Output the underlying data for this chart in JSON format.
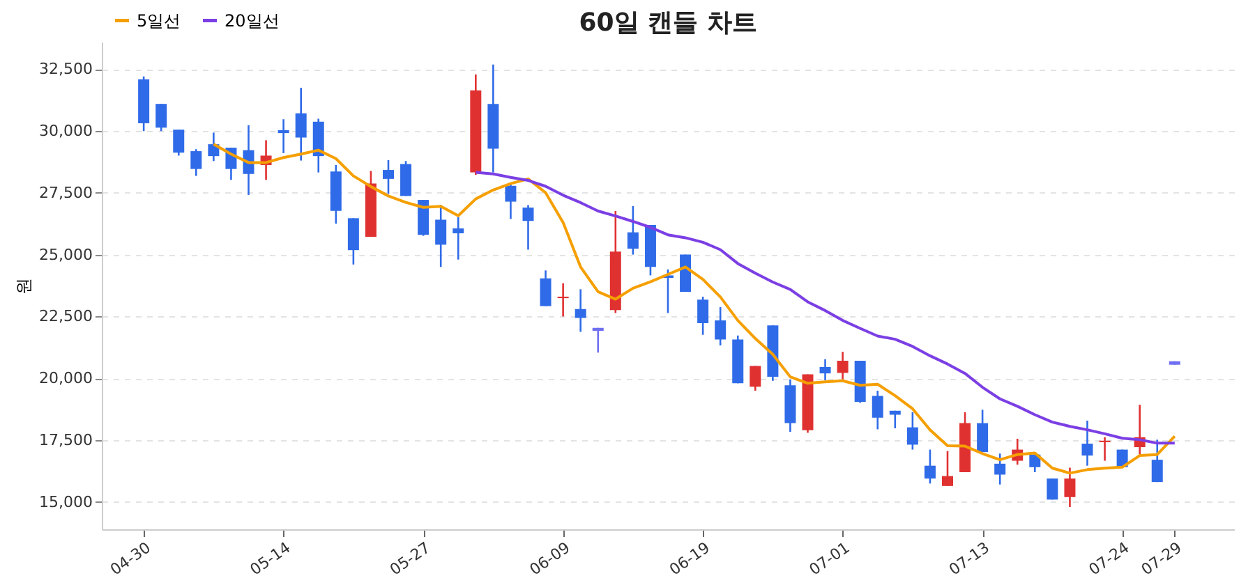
{
  "chart_data": {
    "type": "candlestick",
    "title": "60일 캔들 차트",
    "ylabel": "원",
    "categories": [
      "04-30",
      null,
      null,
      null,
      null,
      null,
      null,
      null,
      "05-14",
      null,
      null,
      null,
      null,
      null,
      null,
      null,
      "05-27",
      null,
      null,
      null,
      null,
      null,
      null,
      null,
      "06-09",
      null,
      null,
      null,
      null,
      null,
      null,
      null,
      "06-19",
      null,
      null,
      null,
      null,
      null,
      null,
      null,
      "07-01",
      null,
      null,
      null,
      null,
      null,
      null,
      null,
      "07-13",
      null,
      null,
      null,
      null,
      null,
      null,
      null,
      "07-24",
      null,
      null,
      "07-29"
    ],
    "ohlc": [
      [
        32080,
        32200,
        29990,
        30310
      ],
      [
        31090,
        31090,
        29990,
        30130
      ],
      [
        30050,
        30050,
        29000,
        29120
      ],
      [
        29180,
        29260,
        28180,
        28460
      ],
      [
        29460,
        29930,
        28780,
        28980
      ],
      [
        29320,
        29320,
        28020,
        28460
      ],
      [
        29220,
        30230,
        27410,
        28260
      ],
      [
        28620,
        29620,
        28020,
        29000
      ],
      [
        30030,
        30470,
        29100,
        29910
      ],
      [
        30710,
        31740,
        28800,
        29730
      ],
      [
        30370,
        30490,
        28320,
        28980
      ],
      [
        28360,
        28620,
        26250,
        26770
      ],
      [
        26470,
        26470,
        24600,
        25180
      ],
      [
        25720,
        28380,
        25720,
        27870
      ],
      [
        28420,
        28820,
        27450,
        28060
      ],
      [
        28660,
        28780,
        27370,
        27370
      ],
      [
        27210,
        27210,
        25760,
        25800
      ],
      [
        26410,
        27010,
        24500,
        25400
      ],
      [
        26060,
        26510,
        24800,
        25860
      ],
      [
        28320,
        32280,
        28220,
        31640
      ],
      [
        31090,
        32680,
        28320,
        29280
      ],
      [
        27780,
        27880,
        26440,
        27140
      ],
      [
        26900,
        27000,
        25200,
        26360
      ],
      [
        24040,
        24360,
        22920,
        22920
      ],
      [
        23240,
        23840,
        22500,
        23300
      ],
      [
        22800,
        23600,
        21880,
        22440
      ],
      [
        22040,
        22040,
        21040,
        21920
      ],
      [
        22760,
        26760,
        22640,
        25120
      ],
      [
        25900,
        26960,
        25000,
        25240
      ],
      [
        26200,
        26200,
        24160,
        24500
      ],
      [
        24160,
        24400,
        22640,
        24060
      ],
      [
        25000,
        25000,
        23500,
        23500
      ],
      [
        23180,
        23300,
        21760,
        22230
      ],
      [
        22340,
        22880,
        21330,
        21570
      ],
      [
        21570,
        21730,
        19800,
        19800
      ],
      [
        19660,
        20500,
        19500,
        20500
      ],
      [
        22140,
        22140,
        19900,
        20060
      ],
      [
        19720,
        19960,
        17840,
        18190
      ],
      [
        17900,
        20160,
        17800,
        20160
      ],
      [
        20460,
        20770,
        19920,
        20200
      ],
      [
        20220,
        21070,
        19960,
        20710
      ],
      [
        20710,
        20710,
        19010,
        19050
      ],
      [
        19290,
        19500,
        17940,
        18410
      ],
      [
        18690,
        18690,
        17980,
        18530
      ],
      [
        18020,
        18630,
        17120,
        17320
      ],
      [
        16470,
        17120,
        15750,
        15950
      ],
      [
        15650,
        17060,
        15650,
        16050
      ],
      [
        16210,
        18630,
        16210,
        18190
      ],
      [
        18190,
        18730,
        17020,
        17020
      ],
      [
        16550,
        16960,
        15710,
        16110
      ],
      [
        16670,
        17560,
        16510,
        17120
      ],
      [
        16920,
        16920,
        16210,
        16410
      ],
      [
        15950,
        15950,
        15100,
        15100
      ],
      [
        15200,
        16390,
        14800,
        15950
      ],
      [
        17360,
        18290,
        16470,
        16880
      ],
      [
        17420,
        17620,
        16670,
        17480
      ],
      [
        17120,
        17120,
        16410,
        16410
      ],
      [
        17220,
        18930,
        16920,
        17620
      ],
      [
        16710,
        17520,
        15810,
        15810
      ],
      [
        20690,
        20690,
        20550,
        20550
      ]
    ],
    "colors": [
      "#2f6be8",
      "#2f6be8",
      "#2f6be8",
      "#2f6be8",
      "#2f6be8",
      "#2f6be8",
      "#2f6be8",
      "#e03131",
      "#2f6be8",
      "#2f6be8",
      "#2f6be8",
      "#2f6be8",
      "#2f6be8",
      "#e03131",
      "#2f6be8",
      "#2f6be8",
      "#2f6be8",
      "#2f6be8",
      "#2f6be8",
      "#e03131",
      "#2f6be8",
      "#2f6be8",
      "#2f6be8",
      "#2f6be8",
      "#e03131",
      "#2f6be8",
      "#6f6ff2",
      "#e03131",
      "#2f6be8",
      "#2f6be8",
      "#2f6be8",
      "#2f6be8",
      "#2f6be8",
      "#2f6be8",
      "#2f6be8",
      "#e03131",
      "#2f6be8",
      "#2f6be8",
      "#e03131",
      "#2f6be8",
      "#e03131",
      "#2f6be8",
      "#2f6be8",
      "#2f6be8",
      "#2f6be8",
      "#2f6be8",
      "#e03131",
      "#e03131",
      "#2f6be8",
      "#2f6be8",
      "#e03131",
      "#2f6be8",
      "#2f6be8",
      "#e03131",
      "#2f6be8",
      "#e03131",
      "#2f6be8",
      "#e03131",
      "#2f6be8",
      "#6f6ff2"
    ],
    "series": [
      {
        "name": "5일선",
        "type": "line",
        "color": "#f59f00",
        "values": [
          null,
          null,
          null,
          null,
          29460,
          29060,
          28720,
          28720,
          28920,
          29060,
          29220,
          28880,
          28180,
          27750,
          27370,
          27110,
          26910,
          26950,
          26570,
          27250,
          27610,
          27870,
          28060,
          27500,
          26300,
          24500,
          23500,
          23200,
          23640,
          23900,
          24200,
          24500,
          24000,
          23290,
          22340,
          21610,
          20970,
          20060,
          19800,
          19860,
          19900,
          19720,
          19760,
          19300,
          18770,
          17920,
          17280,
          17260,
          16960,
          16710,
          16920,
          16980,
          16370,
          16170,
          16310,
          16370,
          16410,
          16880,
          16920,
          17660
        ]
      },
      {
        "name": "20일선",
        "type": "line",
        "color": "#7b3fe4",
        "values": [
          null,
          null,
          null,
          null,
          null,
          null,
          null,
          null,
          null,
          null,
          null,
          null,
          null,
          null,
          null,
          null,
          null,
          null,
          null,
          28320,
          28260,
          28120,
          28000,
          27760,
          27400,
          27100,
          26760,
          26560,
          26340,
          26100,
          25800,
          25680,
          25500,
          25200,
          24640,
          24250,
          23890,
          23590,
          23090,
          22740,
          22340,
          22020,
          21710,
          21580,
          21290,
          20910,
          20580,
          20200,
          19640,
          19170,
          18870,
          18530,
          18230,
          18060,
          17920,
          17760,
          17580,
          17520,
          17380,
          17380
        ]
      }
    ],
    "ylim": [
      13900,
      33600
    ],
    "yticks": [
      {
        "value": 15000,
        "label": "15,000"
      },
      {
        "value": 17500,
        "label": "17,500"
      },
      {
        "value": 20000,
        "label": "20,000"
      },
      {
        "value": 22500,
        "label": "22,500"
      },
      {
        "value": 25000,
        "label": "25,000"
      },
      {
        "value": 27500,
        "label": "27,500"
      },
      {
        "value": 30000,
        "label": "30,000"
      },
      {
        "value": 32500,
        "label": "32,500"
      }
    ],
    "grid": "y",
    "legend": "top left"
  }
}
